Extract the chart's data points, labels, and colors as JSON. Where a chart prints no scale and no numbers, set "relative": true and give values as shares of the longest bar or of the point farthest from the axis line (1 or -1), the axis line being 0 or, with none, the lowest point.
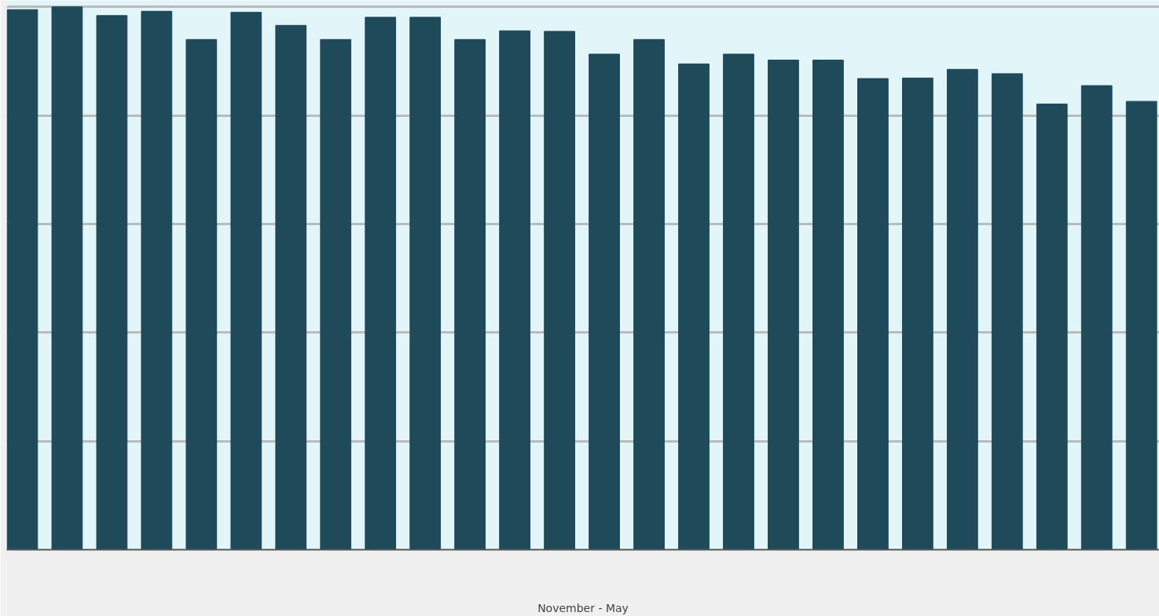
{
  "chart_data": {
    "type": "bar",
    "relative": true,
    "xlabel": "November - May",
    "color": "#1e4a5a",
    "grid": "y",
    "categories": [
      null,
      null,
      null,
      null,
      null,
      null,
      null,
      null,
      null,
      null,
      null,
      null,
      null,
      null,
      null,
      null,
      null,
      null,
      null,
      null,
      null,
      null,
      null,
      null,
      null,
      null
    ],
    "values": [
      0.995,
      1,
      0.984,
      0.992,
      0.94,
      0.99,
      0.966,
      0.94,
      0.981,
      0.981,
      0.94,
      0.956,
      0.955,
      0.913,
      0.94,
      0.895,
      0.913,
      0.902,
      0.902,
      0.868,
      0.869,
      0.885,
      0.877,
      0.821,
      0.855,
      0.826
    ]
  }
}
